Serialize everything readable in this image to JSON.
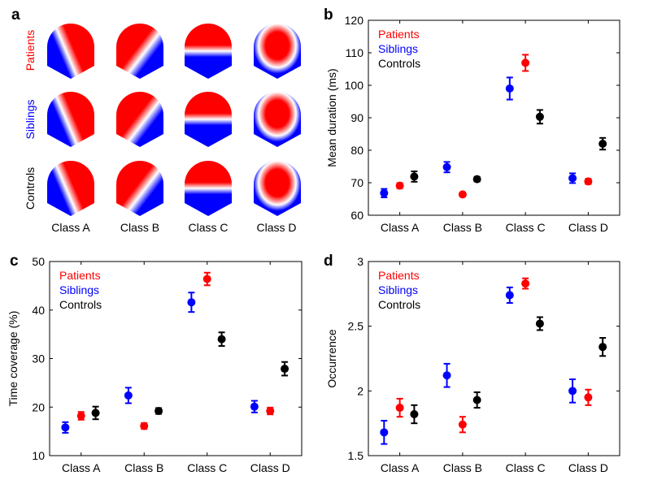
{
  "panel_labels": [
    "a",
    "b",
    "c",
    "d"
  ],
  "groups": [
    {
      "name": "Patients",
      "color": "#ff0000"
    },
    {
      "name": "Siblings",
      "color": "#0000ff"
    },
    {
      "name": "Controls",
      "color": "#000000"
    }
  ],
  "topomaps": {
    "rows": [
      "Patients",
      "Siblings",
      "Controls"
    ],
    "row_colors": [
      "#ff0000",
      "#0000ff",
      "#000000"
    ],
    "columns": [
      "Class A",
      "Class B",
      "Class C",
      "Class D"
    ],
    "colormap": {
      "positive": "#ff0000",
      "neutral": "#ffffff",
      "negative": "#0000ff"
    }
  },
  "chart_data": [
    {
      "panel": "b",
      "type": "scatter",
      "subtype": "errorbar",
      "title": "",
      "xlabel": "",
      "ylabel": "Mean duration (ms)",
      "categories": [
        "Class A",
        "Class B",
        "Class C",
        "Class D"
      ],
      "ylim": [
        60,
        120
      ],
      "yticks": [
        60,
        70,
        80,
        90,
        100,
        110,
        120
      ],
      "legend": {
        "placement": "top-left",
        "entries": [
          "Patients",
          "Siblings",
          "Controls"
        ]
      },
      "series": [
        {
          "name": "Siblings",
          "values": [
            66.8,
            74.8,
            99.0,
            71.4
          ],
          "errors": [
            1.3,
            1.6,
            3.4,
            1.5
          ]
        },
        {
          "name": "Patients",
          "values": [
            69.1,
            66.4,
            106.9,
            70.4
          ],
          "errors": [
            0.8,
            0.6,
            2.5,
            0.8
          ]
        },
        {
          "name": "Controls",
          "values": [
            71.9,
            71.1,
            90.3,
            82.0
          ],
          "errors": [
            1.6,
            0.7,
            2.1,
            1.8
          ]
        }
      ]
    },
    {
      "panel": "c",
      "type": "scatter",
      "subtype": "errorbar",
      "title": "",
      "xlabel": "",
      "ylabel": "Time coverage (%)",
      "categories": [
        "Class A",
        "Class B",
        "Class C",
        "Class D"
      ],
      "ylim": [
        10,
        50
      ],
      "yticks": [
        10,
        20,
        30,
        40,
        50
      ],
      "legend": {
        "placement": "top-left",
        "entries": [
          "Patients",
          "Siblings",
          "Controls"
        ]
      },
      "series": [
        {
          "name": "Siblings",
          "values": [
            15.8,
            22.4,
            41.6,
            20.1
          ],
          "errors": [
            1.1,
            1.6,
            2.0,
            1.2
          ]
        },
        {
          "name": "Patients",
          "values": [
            18.2,
            16.1,
            46.4,
            19.2
          ],
          "errors": [
            0.8,
            0.6,
            1.3,
            0.7
          ]
        },
        {
          "name": "Controls",
          "values": [
            18.8,
            19.2,
            34.0,
            27.9
          ],
          "errors": [
            1.3,
            0.6,
            1.4,
            1.4
          ]
        }
      ]
    },
    {
      "panel": "d",
      "type": "scatter",
      "subtype": "errorbar",
      "title": "",
      "xlabel": "",
      "ylabel": "Occurrence",
      "categories": [
        "Class A",
        "Class B",
        "Class C",
        "Class D"
      ],
      "ylim": [
        1.5,
        3
      ],
      "yticks": [
        1.5,
        2,
        2.5,
        3
      ],
      "legend": {
        "placement": "top-left",
        "entries": [
          "Patients",
          "Siblings",
          "Controls"
        ]
      },
      "series": [
        {
          "name": "Siblings",
          "values": [
            1.68,
            2.12,
            2.74,
            2.0
          ],
          "errors": [
            0.09,
            0.09,
            0.06,
            0.09
          ]
        },
        {
          "name": "Patients",
          "values": [
            1.87,
            1.74,
            2.83,
            1.95
          ],
          "errors": [
            0.07,
            0.06,
            0.04,
            0.06
          ]
        },
        {
          "name": "Controls",
          "values": [
            1.82,
            1.93,
            2.52,
            2.34
          ],
          "errors": [
            0.07,
            0.06,
            0.05,
            0.07
          ]
        }
      ]
    }
  ]
}
